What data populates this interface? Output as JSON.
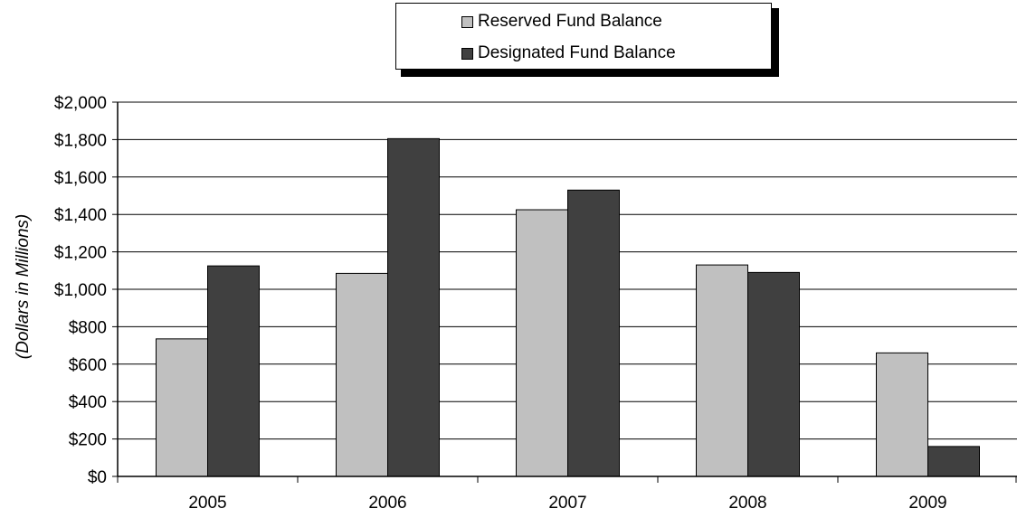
{
  "chart_data": {
    "type": "bar",
    "categories": [
      "2005",
      "2006",
      "2007",
      "2008",
      "2009"
    ],
    "series": [
      {
        "name": "Reserved Fund Balance",
        "color": "#c0c0c0",
        "values": [
          735,
          1085,
          1425,
          1130,
          660
        ]
      },
      {
        "name": "Designated Fund Balance",
        "color": "#404040",
        "values": [
          1125,
          1805,
          1530,
          1090,
          160
        ]
      }
    ],
    "ylabel": "(Dollars in Millions)",
    "ylim": [
      0,
      2000
    ],
    "yticks": [
      0,
      200,
      400,
      600,
      800,
      1000,
      1200,
      1400,
      1600,
      1800,
      2000
    ],
    "ytick_labels": [
      "$0",
      "$200",
      "$400",
      "$600",
      "$800",
      "$1,000",
      "$1,200",
      "$1,400",
      "$1,600",
      "$1,800",
      "$2,000"
    ],
    "grid": true,
    "legend_position": "top-center"
  }
}
